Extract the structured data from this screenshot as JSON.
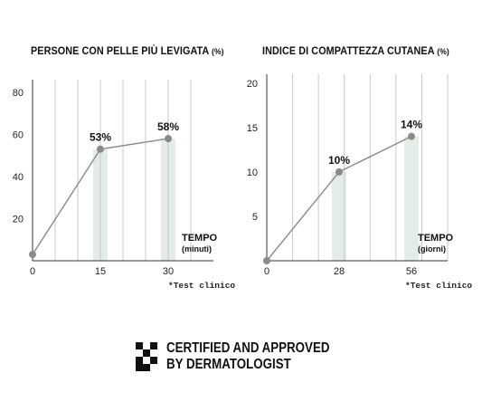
{
  "chart_data": [
    {
      "type": "line",
      "title": "PERSONE CON PELLE PIÙ LEVIGATA",
      "title_unit": "(%)",
      "x": [
        0,
        15,
        30
      ],
      "values": [
        3,
        53,
        58
      ],
      "labels": [
        "",
        "53%",
        "58%"
      ],
      "xticks": [
        "0",
        "15",
        "30"
      ],
      "yticks": [
        "20",
        "40",
        "60",
        "80"
      ],
      "ylim": [
        0,
        86
      ],
      "xlim": [
        0,
        40
      ],
      "xlabel": "TEMPO",
      "xlabel_sub": "(minuti)",
      "grid": "vertical",
      "highlight_bars_at": [
        15,
        30
      ],
      "footnote": "*Test clinico"
    },
    {
      "type": "line",
      "title": "INDICE DI COMPATTEZZA CUTANEA",
      "title_unit": "(%)",
      "x": [
        0,
        28,
        56
      ],
      "values": [
        0,
        10,
        14
      ],
      "labels": [
        "",
        "10%",
        "14%"
      ],
      "xticks": [
        "0",
        "28",
        "56"
      ],
      "yticks": [
        "5",
        "10",
        "15",
        "20"
      ],
      "ylim": [
        0,
        21
      ],
      "xlim": [
        0,
        70
      ],
      "xlabel": "TEMPO",
      "xlabel_sub": "(giorni)",
      "grid": "vertical",
      "highlight_bars_at": [
        28,
        56
      ],
      "footnote": "*Test clinico"
    }
  ],
  "certification": {
    "line1": "CERTIFIED AND APPROVED",
    "line2": "BY DERMATOLOGIST",
    "icon": "checkerboard-icon"
  },
  "colors": {
    "line": "#8a8a8a",
    "point": "#8a8a8a",
    "grid": "#c9c9c9",
    "highlight": "#e4ece8",
    "axis": "#333333"
  }
}
